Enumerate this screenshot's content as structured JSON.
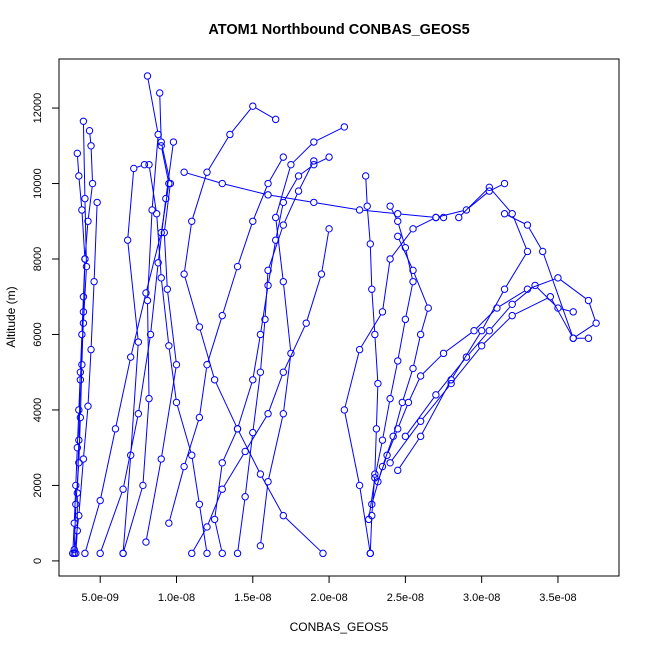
{
  "chart_data": {
    "type": "scatter",
    "title": "ATOM1 Northbound CONBAS_GEOS5",
    "xlabel": "CONBAS_GEOS5",
    "ylabel": "Altitude (m)",
    "xlim": [
      2.3e-09,
      3.9e-08
    ],
    "ylim": [
      -400,
      13300
    ],
    "xticks": [
      {
        "value": 5e-09,
        "label": "5.0e-09"
      },
      {
        "value": 1e-08,
        "label": "1.0e-08"
      },
      {
        "value": 1.5e-08,
        "label": "1.5e-08"
      },
      {
        "value": 2e-08,
        "label": "2.0e-08"
      },
      {
        "value": 2.5e-08,
        "label": "2.5e-08"
      },
      {
        "value": 3e-08,
        "label": "3.0e-08"
      },
      {
        "value": 3.5e-08,
        "label": "3.5e-08"
      }
    ],
    "yticks": [
      {
        "value": 0,
        "label": "0"
      },
      {
        "value": 2000,
        "label": "2000"
      },
      {
        "value": 4000,
        "label": "4000"
      },
      {
        "value": 6000,
        "label": "6000"
      },
      {
        "value": 8000,
        "label": "8000"
      },
      {
        "value": 10000,
        "label": "10000"
      },
      {
        "value": 12000,
        "label": "12000"
      }
    ],
    "grid": false,
    "legend": "none",
    "series_color": "#0000ff",
    "marker": "open-circle",
    "connected": true,
    "profiles": [
      {
        "x": [
          3.2e-09,
          3.3e-09,
          3.4e-09,
          3.5e-09,
          3.6e-09,
          3.7e-09,
          3.8e-09,
          3.9e-09,
          4e-09,
          4.2e-09,
          4.5e-09,
          4.4e-09,
          4.3e-09
        ],
        "y": [
          200,
          1000,
          2000,
          3000,
          4000,
          5000,
          6000,
          7000,
          8000,
          9000,
          10000,
          11000,
          11400
        ]
      },
      {
        "x": [
          3.3e-09,
          3.4e-09,
          3.6e-09,
          3.7e-09,
          3.8e-09,
          3.9e-09,
          4e-09,
          3.8e-09,
          3.6e-09,
          3.5e-09
        ],
        "y": [
          300,
          1500,
          2600,
          3800,
          5200,
          6600,
          8000,
          9300,
          10200,
          10800
        ]
      },
      {
        "x": [
          3.4e-09,
          3.5e-09,
          3.5e-09,
          3.6e-09,
          3.7e-09,
          3.9e-09,
          4.1e-09,
          4e-09,
          3.9e-09
        ],
        "y": [
          200,
          800,
          1800,
          3200,
          4800,
          6300,
          7800,
          9600,
          11650
        ]
      },
      {
        "x": [
          3.3e-09,
          3.6e-09,
          3.9e-09,
          4.2e-09,
          4.4e-09,
          4.6e-09,
          4.8e-09
        ],
        "y": [
          200,
          1200,
          2700,
          4100,
          5600,
          7400,
          9500
        ]
      },
      {
        "x": [
          4e-09,
          5e-09,
          6e-09,
          7e-09,
          8e-09,
          9e-09,
          9.5e-09,
          9e-09
        ],
        "y": [
          200,
          1600,
          3500,
          5400,
          7100,
          8700,
          10000,
          11000
        ]
      },
      {
        "x": [
          5e-09,
          6.5e-09,
          7.5e-09,
          8.3e-09,
          8.8e-09,
          9.3e-09,
          9.8e-09
        ],
        "y": [
          200,
          1900,
          3900,
          6000,
          7900,
          9600,
          11100
        ]
      },
      {
        "x": [
          6.5e-09,
          7.8e-09,
          8.2e-09,
          8.1e-09,
          8.4e-09,
          8.8e-09,
          8.1e-09
        ],
        "y": [
          200,
          2000,
          4300,
          6900,
          9300,
          11300,
          12850
        ]
      },
      {
        "x": [
          6.5e-09,
          7e-09,
          7.5e-09,
          6.8e-09,
          7.2e-09,
          7.9e-09
        ],
        "y": [
          200,
          2800,
          5800,
          8500,
          10400,
          10500
        ]
      },
      {
        "x": [
          8e-09,
          9e-09,
          1e-08,
          9.4e-09,
          9.2e-09,
          9.6e-09,
          9e-09,
          8.9e-09
        ],
        "y": [
          500,
          2700,
          5200,
          7200,
          8700,
          10000,
          11100,
          12400
        ]
      },
      {
        "x": [
          9.5e-09,
          1.05e-08,
          1.15e-08,
          1.2e-08,
          1.3e-08,
          1.4e-08,
          1.5e-08,
          1.6e-08,
          1.7e-08
        ],
        "y": [
          1000,
          2500,
          3800,
          5200,
          6500,
          7800,
          9000,
          10000,
          10700
        ]
      },
      {
        "x": [
          1.2e-08,
          1.15e-08,
          1.1e-08,
          1e-08,
          9.5e-09,
          9e-09,
          8.7e-09,
          8.2e-09
        ],
        "y": [
          200,
          1500,
          2800,
          4200,
          5700,
          7500,
          9200,
          10500
        ]
      },
      {
        "x": [
          1.3e-08,
          1.25e-08,
          1.3e-08,
          1.4e-08,
          1.5e-08,
          1.55e-08,
          1.6e-08,
          1.65e-08,
          1.7e-08,
          1.8e-08,
          1.9e-08,
          2e-08
        ],
        "y": [
          200,
          1100,
          2600,
          3500,
          4800,
          6000,
          7300,
          8500,
          9500,
          10200,
          10500,
          10700
        ]
      },
      {
        "x": [
          1.4e-08,
          1.45e-08,
          1.5e-08,
          1.55e-08,
          1.58e-08,
          1.6e-08,
          1.7e-08,
          1.8e-08,
          1.9e-08
        ],
        "y": [
          200,
          1700,
          3400,
          5000,
          6400,
          7700,
          8900,
          9800,
          10600
        ]
      },
      {
        "x": [
          1.55e-08,
          1.6e-08,
          1.7e-08,
          1.75e-08,
          1.7e-08,
          1.65e-08,
          1.75e-08,
          1.9e-08,
          2.1e-08
        ],
        "y": [
          400,
          2100,
          3900,
          5500,
          7400,
          9100,
          10500,
          11100,
          11500
        ]
      },
      {
        "x": [
          1.96e-08,
          1.7e-08,
          1.55e-08,
          1.4e-08,
          1.25e-08,
          1.15e-08,
          1.05e-08,
          1.1e-08,
          1.2e-08,
          1.35e-08,
          1.5e-08,
          1.65e-08
        ],
        "y": [
          200,
          1200,
          2300,
          3500,
          4800,
          6200,
          7600,
          9000,
          10300,
          11300,
          12050,
          11700
        ]
      },
      {
        "x": [
          1.1e-08,
          1.2e-08,
          1.3e-08,
          1.45e-08,
          1.6e-08,
          1.7e-08,
          1.85e-08,
          1.95e-08,
          2e-08
        ],
        "y": [
          200,
          900,
          1900,
          2900,
          3900,
          5000,
          6300,
          7600,
          8800
        ]
      },
      {
        "x": [
          2.27e-08,
          2.28e-08,
          2.3e-08,
          2.31e-08,
          2.32e-08,
          2.3e-08,
          2.28e-08,
          2.27e-08,
          2.25e-08,
          2.24e-08
        ],
        "y": [
          200,
          1200,
          2300,
          3500,
          4700,
          6000,
          7200,
          8400,
          9400,
          10200
        ]
      },
      {
        "x": [
          2.26e-08,
          2.3e-08,
          2.35e-08,
          2.4e-08,
          2.45e-08,
          2.5e-08,
          2.55e-08,
          2.5e-08,
          2.45e-08,
          2.4e-08
        ],
        "y": [
          1100,
          2200,
          3200,
          4300,
          5300,
          6400,
          7400,
          8300,
          9000,
          9400
        ]
      },
      {
        "x": [
          2.28e-08,
          2.35e-08,
          2.42e-08,
          2.48e-08,
          2.55e-08,
          2.6e-08,
          2.65e-08,
          2.55e-08,
          2.45e-08
        ],
        "y": [
          1500,
          2500,
          3300,
          4200,
          5100,
          6000,
          6700,
          7700,
          8600
        ]
      },
      {
        "x": [
          2.32e-08,
          2.38e-08,
          2.45e-08,
          2.52e-08,
          2.6e-08,
          2.75e-08,
          2.95e-08,
          3.1e-08,
          3.3e-08,
          3.5e-08,
          3.7e-08,
          3.75e-08,
          3.6e-08,
          3.4e-08,
          3.3e-08,
          3.15e-08
        ],
        "y": [
          2100,
          2800,
          3500,
          4200,
          4900,
          5500,
          6100,
          6700,
          7200,
          7500,
          6900,
          6300,
          5900,
          8200,
          8900,
          9200
        ]
      },
      {
        "x": [
          2.4e-08,
          2.6e-08,
          2.8e-08,
          3e-08,
          3.2e-08,
          3.45e-08,
          3.6e-08,
          3.7e-08
        ],
        "y": [
          2600,
          3700,
          4700,
          5700,
          6500,
          7000,
          5900,
          5900
        ]
      },
      {
        "x": [
          2.5e-08,
          2.7e-08,
          2.9e-08,
          3.05e-08,
          3.2e-08,
          3.35e-08,
          3.5e-08,
          3.6e-08
        ],
        "y": [
          3300,
          4400,
          5400,
          6100,
          6800,
          7300,
          6700,
          6600
        ]
      },
      {
        "x": [
          2.45e-08,
          2.6e-08,
          2.8e-08,
          3e-08,
          3.15e-08,
          3.3e-08,
          3.2e-08,
          3.05e-08,
          2.85e-08
        ],
        "y": [
          2400,
          3300,
          4800,
          6100,
          7200,
          8200,
          9200,
          9900,
          9100
        ]
      },
      {
        "x": [
          1.05e-08,
          1.3e-08,
          1.6e-08,
          1.9e-08,
          2.2e-08,
          2.45e-08,
          2.7e-08,
          2.9e-08,
          3.05e-08,
          3.15e-08
        ],
        "y": [
          10300,
          10000,
          9700,
          9500,
          9300,
          9200,
          9100,
          9300,
          9800,
          10000
        ]
      },
      {
        "x": [
          2.27e-08,
          2.2e-08,
          2.1e-08,
          2.2e-08,
          2.35e-08,
          2.4e-08,
          2.55e-08,
          2.7e-08,
          2.75e-08
        ],
        "y": [
          200,
          2000,
          4000,
          5600,
          6600,
          8000,
          8800,
          9100,
          9100
        ]
      }
    ]
  }
}
